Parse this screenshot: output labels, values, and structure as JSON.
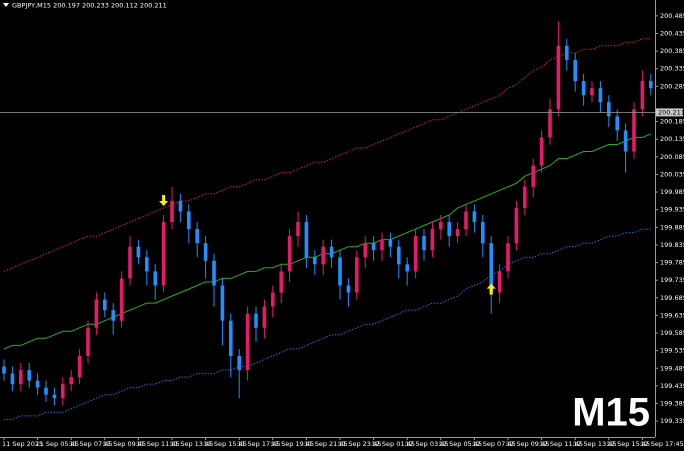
{
  "chart_data": {
    "type": "candlestick",
    "title": "GBPJPY,M15 200.197 200.233 200.112 200.211",
    "watermark": "M15",
    "current_price": 200.211,
    "bull_color": "#e8196c",
    "bear_color": "#1e90ff",
    "ylim": [
      199.29,
      200.53
    ],
    "yticks": [
      199.335,
      199.385,
      199.435,
      199.485,
      199.535,
      199.585,
      199.635,
      199.685,
      199.735,
      199.785,
      199.835,
      199.885,
      199.935,
      199.985,
      200.035,
      200.085,
      200.135,
      200.185,
      200.285,
      200.335,
      200.385,
      200.435,
      200.485
    ],
    "categories": [
      "11 Sep 2025",
      null,
      null,
      null,
      "11 Sep 05:45",
      null,
      null,
      null,
      "11 Sep 07:45",
      null,
      null,
      null,
      "11 Sep 09:45",
      null,
      null,
      null,
      "11 Sep 11:45",
      null,
      null,
      null,
      "11 Sep 13:45",
      null,
      null,
      null,
      "11 Sep 15:45",
      null,
      null,
      null,
      "11 Sep 17:45",
      null,
      null,
      null,
      "11 Sep 19:45",
      null,
      null,
      null,
      "11 Sep 21:45",
      null,
      null,
      null,
      "11 Sep 23:45",
      null,
      null,
      null,
      "12 Sep 01:45",
      null,
      null,
      null,
      "12 Sep 03:45",
      null,
      null,
      null,
      "12 Sep 05:45",
      null,
      null,
      null,
      "12 Sep 07:45",
      null,
      null,
      null,
      "12 Sep 09:45",
      null,
      null,
      null,
      "12 Sep 11:45",
      null,
      null,
      null,
      "12 Sep 13:45",
      null,
      null,
      null,
      "12 Sep 15:45",
      null,
      null,
      null,
      "12 Sep 17:45",
      null
    ],
    "open": [
      199.49,
      199.47,
      199.44,
      199.48,
      199.45,
      199.43,
      199.41,
      199.4,
      199.44,
      199.46,
      199.52,
      199.6,
      199.68,
      199.65,
      199.62,
      199.74,
      199.83,
      199.8,
      199.76,
      199.72,
      199.9,
      199.96,
      199.93,
      199.88,
      199.84,
      199.79,
      199.72,
      199.62,
      199.52,
      199.48,
      199.64,
      199.6,
      199.66,
      199.7,
      199.76,
      199.86,
      199.9,
      199.8,
      199.78,
      199.83,
      199.8,
      199.72,
      199.7,
      199.8,
      199.84,
      199.82,
      199.85,
      199.83,
      199.78,
      199.76,
      199.86,
      199.82,
      199.88,
      199.9,
      199.86,
      199.88,
      199.93,
      199.9,
      199.84,
      199.7,
      199.76,
      199.84,
      199.94,
      200.0,
      200.06,
      200.14,
      200.22,
      200.4,
      200.36,
      200.3,
      200.26,
      200.28,
      200.24,
      200.2,
      200.16,
      200.1,
      200.22,
      200.3
    ],
    "high": [
      199.51,
      199.49,
      199.5,
      199.5,
      199.47,
      199.45,
      199.43,
      199.46,
      199.48,
      199.54,
      199.62,
      199.7,
      199.7,
      199.67,
      199.76,
      199.86,
      199.85,
      199.82,
      199.78,
      199.92,
      200.0,
      199.98,
      199.95,
      199.9,
      199.86,
      199.81,
      199.74,
      199.64,
      199.54,
      199.66,
      199.66,
      199.68,
      199.72,
      199.78,
      199.88,
      199.93,
      199.92,
      199.82,
      199.85,
      199.85,
      199.82,
      199.74,
      199.82,
      199.86,
      199.86,
      199.87,
      199.87,
      199.85,
      199.8,
      199.88,
      199.88,
      199.9,
      199.92,
      199.92,
      199.9,
      199.95,
      199.95,
      199.92,
      199.86,
      199.78,
      199.86,
      199.96,
      200.02,
      200.08,
      200.16,
      200.25,
      200.47,
      200.42,
      200.38,
      200.32,
      200.3,
      200.3,
      200.26,
      200.22,
      200.18,
      200.24,
      200.33,
      200.32
    ],
    "low": [
      199.45,
      199.42,
      199.42,
      199.43,
      199.41,
      199.39,
      199.38,
      199.38,
      199.42,
      199.44,
      199.5,
      199.58,
      199.63,
      199.58,
      199.6,
      199.72,
      199.78,
      199.72,
      199.68,
      199.7,
      199.88,
      199.9,
      199.84,
      199.8,
      199.74,
      199.66,
      199.55,
      199.46,
      199.4,
      199.45,
      199.56,
      199.57,
      199.63,
      199.67,
      199.73,
      199.83,
      199.77,
      199.75,
      199.75,
      199.77,
      199.68,
      199.66,
      199.68,
      199.77,
      199.79,
      199.79,
      199.8,
      199.74,
      199.72,
      199.74,
      199.79,
      199.8,
      199.85,
      199.83,
      199.84,
      199.86,
      199.87,
      199.8,
      199.64,
      199.67,
      199.74,
      199.82,
      199.92,
      199.97,
      200.04,
      200.12,
      200.2,
      200.33,
      200.27,
      200.23,
      200.24,
      200.21,
      200.17,
      200.13,
      200.04,
      200.08,
      200.2,
      200.26
    ],
    "close": [
      199.47,
      199.44,
      199.48,
      199.45,
      199.43,
      199.41,
      199.4,
      199.44,
      199.46,
      199.52,
      199.6,
      199.68,
      199.65,
      199.62,
      199.74,
      199.83,
      199.8,
      199.76,
      199.72,
      199.9,
      199.96,
      199.93,
      199.88,
      199.84,
      199.79,
      199.72,
      199.62,
      199.52,
      199.48,
      199.64,
      199.6,
      199.66,
      199.7,
      199.76,
      199.86,
      199.9,
      199.8,
      199.78,
      199.83,
      199.8,
      199.72,
      199.7,
      199.8,
      199.84,
      199.82,
      199.85,
      199.83,
      199.78,
      199.76,
      199.86,
      199.82,
      199.88,
      199.9,
      199.86,
      199.88,
      199.93,
      199.9,
      199.84,
      199.7,
      199.76,
      199.84,
      199.94,
      200.0,
      200.06,
      200.14,
      200.22,
      200.4,
      200.36,
      200.3,
      200.26,
      200.28,
      200.24,
      200.2,
      200.16,
      200.1,
      200.22,
      200.3,
      200.28
    ],
    "lines": [
      {
        "color": "#d42a1e",
        "style": "dotted",
        "values": [
          199.76,
          199.77,
          199.78,
          199.79,
          199.8,
          199.81,
          199.82,
          199.83,
          199.84,
          199.85,
          199.86,
          199.86,
          199.87,
          199.88,
          199.89,
          199.9,
          199.91,
          199.92,
          199.93,
          199.94,
          199.95,
          199.96,
          199.96,
          199.97,
          199.98,
          199.98,
          199.99,
          200.0,
          200.0,
          200.01,
          200.02,
          200.02,
          200.03,
          200.04,
          200.04,
          200.05,
          200.06,
          200.07,
          200.07,
          200.08,
          200.09,
          200.1,
          200.11,
          200.11,
          200.12,
          200.13,
          200.14,
          200.15,
          200.16,
          200.17,
          200.18,
          200.19,
          200.19,
          200.2,
          200.21,
          200.22,
          200.23,
          200.24,
          200.25,
          200.26,
          200.28,
          200.29,
          200.31,
          200.33,
          200.34,
          200.36,
          200.37,
          200.38,
          200.38,
          200.39,
          200.39,
          200.4,
          200.4,
          200.4,
          200.41,
          200.41,
          200.42,
          200.42
        ]
      },
      {
        "color": "#22b422",
        "style": "solid",
        "values": [
          199.54,
          199.55,
          199.55,
          199.56,
          199.57,
          199.57,
          199.58,
          199.59,
          199.59,
          199.6,
          199.61,
          199.61,
          199.62,
          199.63,
          199.64,
          199.65,
          199.66,
          199.67,
          199.67,
          199.68,
          199.69,
          199.7,
          199.71,
          199.72,
          199.73,
          199.73,
          199.74,
          199.74,
          199.75,
          199.76,
          199.76,
          199.77,
          199.77,
          199.78,
          199.78,
          199.79,
          199.8,
          199.8,
          199.81,
          199.81,
          199.82,
          199.83,
          199.83,
          199.84,
          199.84,
          199.85,
          199.85,
          199.86,
          199.87,
          199.88,
          199.89,
          199.9,
          199.91,
          199.92,
          199.94,
          199.95,
          199.96,
          199.97,
          199.98,
          199.99,
          200.0,
          200.01,
          200.03,
          200.04,
          200.05,
          200.06,
          200.08,
          200.08,
          200.09,
          200.1,
          200.1,
          200.11,
          200.12,
          200.12,
          200.13,
          200.14,
          200.14,
          200.15
        ]
      },
      {
        "color": "#2a6fd6",
        "style": "dotted",
        "values": [
          199.34,
          199.34,
          199.35,
          199.35,
          199.35,
          199.36,
          199.36,
          199.36,
          199.37,
          199.38,
          199.39,
          199.4,
          199.41,
          199.41,
          199.42,
          199.43,
          199.43,
          199.44,
          199.44,
          199.45,
          199.45,
          199.46,
          199.46,
          199.47,
          199.47,
          199.47,
          199.48,
          199.48,
          199.49,
          199.49,
          199.5,
          199.51,
          199.52,
          199.53,
          199.54,
          199.54,
          199.55,
          199.56,
          199.57,
          199.58,
          199.58,
          199.59,
          199.6,
          199.61,
          199.61,
          199.62,
          199.63,
          199.64,
          199.65,
          199.65,
          199.66,
          199.67,
          199.67,
          199.68,
          199.69,
          199.71,
          199.72,
          199.73,
          199.75,
          199.76,
          199.78,
          199.79,
          199.8,
          199.8,
          199.81,
          199.81,
          199.82,
          199.83,
          199.83,
          199.84,
          199.84,
          199.85,
          199.86,
          199.86,
          199.87,
          199.87,
          199.88,
          199.88
        ]
      }
    ],
    "sell_arrows": [
      19
    ],
    "buy_arrows": [
      58
    ],
    "arrow_color": "#ffee00"
  }
}
